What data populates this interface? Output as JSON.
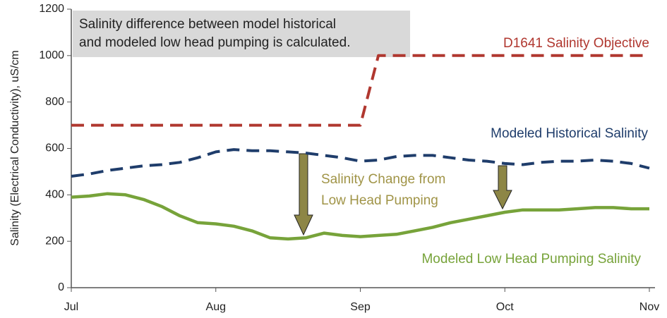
{
  "chart_data": {
    "type": "line",
    "y_label": "Salinity (Electrical Conductivity), uS/cm",
    "categories": [
      "Jul",
      null,
      null,
      null,
      null,
      null,
      null,
      null,
      "Aug",
      null,
      null,
      null,
      null,
      null,
      null,
      null,
      "Sep",
      null,
      null,
      null,
      null,
      null,
      null,
      null,
      "Oct",
      null,
      null,
      null,
      null,
      null,
      null,
      null,
      "Nov"
    ],
    "series": [
      {
        "name": "D1641 Salinity Objective",
        "color": "#b0372f",
        "line_style": "dashed",
        "values": [
          700,
          700,
          700,
          700,
          700,
          700,
          700,
          700,
          700,
          700,
          700,
          700,
          700,
          700,
          700,
          700,
          700,
          1000,
          1000,
          1000,
          1000,
          1000,
          1000,
          1000,
          1000,
          1000,
          1000,
          1000,
          1000,
          1000,
          1000,
          1000,
          1000
        ]
      },
      {
        "name": "Modeled Historical Salinity",
        "color": "#1f3d6b",
        "line_style": "dashed",
        "values": [
          480,
          490,
          505,
          515,
          525,
          530,
          540,
          560,
          585,
          595,
          590,
          590,
          585,
          580,
          570,
          560,
          545,
          550,
          565,
          570,
          570,
          560,
          550,
          545,
          535,
          530,
          540,
          545,
          545,
          550,
          545,
          535,
          515
        ]
      },
      {
        "name": "Modeled Low Head Pumping Salinity",
        "color": "#77a33a",
        "line_style": "solid",
        "values": [
          390,
          395,
          405,
          400,
          380,
          350,
          310,
          280,
          275,
          265,
          245,
          215,
          210,
          215,
          235,
          225,
          220,
          225,
          230,
          245,
          260,
          280,
          295,
          310,
          325,
          335,
          335,
          335,
          340,
          345,
          345,
          340,
          340
        ]
      }
    ],
    "ylim": [
      0,
      1200
    ],
    "yticks": [
      0,
      200,
      400,
      600,
      800,
      1000,
      1200
    ],
    "grid": false,
    "annotations": {
      "note": [
        "Salinity difference between model historical",
        "and modeled low head pumping is calculated."
      ],
      "change": [
        "Salinity Change from",
        "Low Head Pumping"
      ]
    }
  }
}
